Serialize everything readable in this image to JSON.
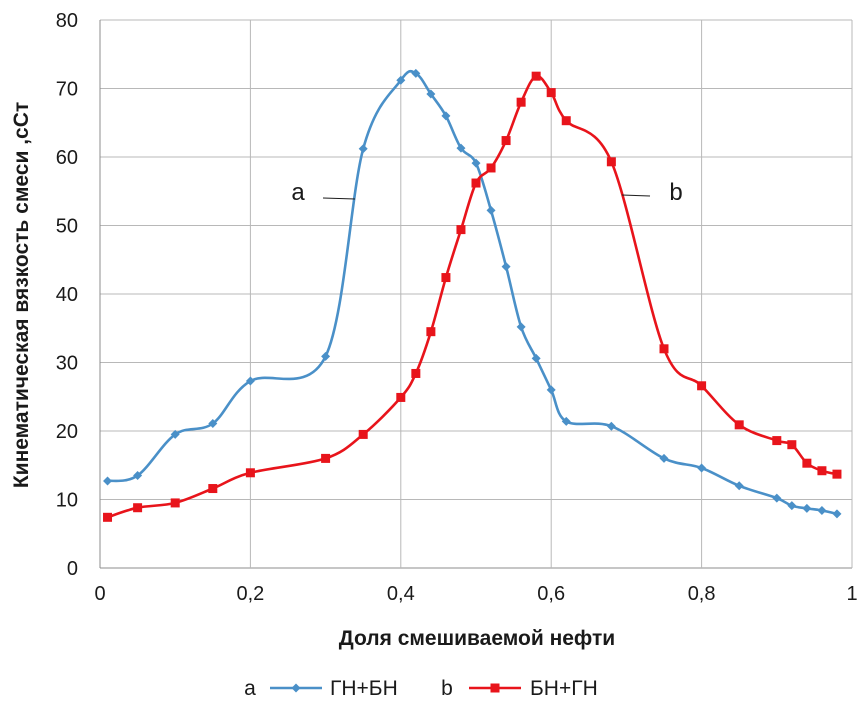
{
  "chart_data": {
    "type": "line",
    "xlabel": "Доля смешиваемой нефти",
    "ylabel": "Кинематическая вязкость смеси ,сСт",
    "xlim": [
      0,
      1
    ],
    "ylim": [
      0,
      80
    ],
    "xticks": [
      "0",
      "0,2",
      "0,4",
      "0,6",
      "0,8",
      "1"
    ],
    "yticks": [
      "0",
      "10",
      "20",
      "30",
      "40",
      "50",
      "60",
      "70",
      "80"
    ],
    "grid": true,
    "legend_position": "bottom",
    "series": [
      {
        "name": "ГН+БН",
        "label": "a",
        "color": "#4a90c8",
        "marker": "diamond",
        "x": [
          0.01,
          0.05,
          0.1,
          0.15,
          0.2,
          0.3,
          0.35,
          0.4,
          0.42,
          0.44,
          0.46,
          0.48,
          0.5,
          0.52,
          0.54,
          0.56,
          0.58,
          0.6,
          0.62,
          0.68,
          0.75,
          0.8,
          0.85,
          0.9,
          0.92,
          0.94,
          0.96,
          0.98
        ],
        "y": [
          12.7,
          13.5,
          19.5,
          21.1,
          27.3,
          30.9,
          61.2,
          71.2,
          72.2,
          69.2,
          66.0,
          61.3,
          59.1,
          52.2,
          44.0,
          35.2,
          30.6,
          26.0,
          21.4,
          20.7,
          16.0,
          14.6,
          12.0,
          10.2,
          9.1,
          8.7,
          8.4,
          7.9
        ]
      },
      {
        "name": "БН+ГН",
        "label": "b",
        "color": "#e8141b",
        "marker": "square",
        "x": [
          0.01,
          0.05,
          0.1,
          0.15,
          0.2,
          0.3,
          0.35,
          0.4,
          0.42,
          0.44,
          0.46,
          0.48,
          0.5,
          0.52,
          0.54,
          0.56,
          0.58,
          0.6,
          0.62,
          0.68,
          0.75,
          0.8,
          0.85,
          0.9,
          0.92,
          0.94,
          0.96,
          0.98
        ],
        "y": [
          7.4,
          8.8,
          9.5,
          11.6,
          13.9,
          16.0,
          19.5,
          24.9,
          28.4,
          34.5,
          42.4,
          49.4,
          56.2,
          58.4,
          62.4,
          68.0,
          71.8,
          69.4,
          65.3,
          59.3,
          32.0,
          26.6,
          20.9,
          18.6,
          18.0,
          15.3,
          14.2,
          13.7
        ]
      }
    ]
  }
}
